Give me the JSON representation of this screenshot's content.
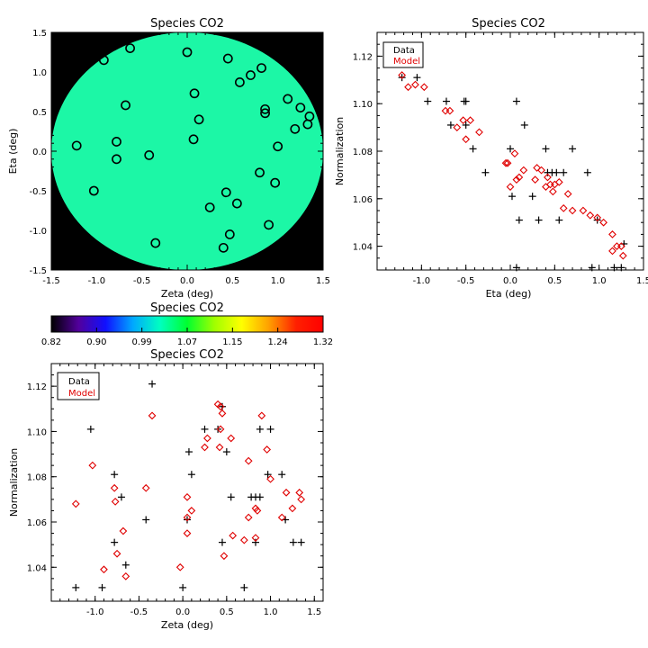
{
  "colors": {
    "data_marker": "#000000",
    "model_marker": "#e00000",
    "frame": "#000000",
    "map_background": "#000000"
  },
  "chart_data": [
    {
      "type": "scatter",
      "subtype": "map",
      "title": "Species CO2",
      "xlabel": "Zeta (deg)",
      "ylabel": "Eta (deg)",
      "xlim": [
        -1.5,
        1.5
      ],
      "ylim": [
        -1.5,
        1.5
      ],
      "xticks": [
        "-1.5",
        "-1.0",
        "-0.5",
        "0.0",
        "0.5",
        "1.0",
        "1.5"
      ],
      "yticks": [
        "-1.5",
        "-1.0",
        "-0.5",
        "0.0",
        "0.5",
        "1.0",
        "1.5"
      ],
      "field_color": "#1cf7a6",
      "field_disk_radius_deg": 1.5,
      "points": [
        {
          "x": -0.92,
          "y": 1.15
        },
        {
          "x": -0.63,
          "y": 1.3
        },
        {
          "x": 0.0,
          "y": 1.25
        },
        {
          "x": 0.45,
          "y": 1.17
        },
        {
          "x": 0.7,
          "y": 0.96
        },
        {
          "x": 0.82,
          "y": 1.05
        },
        {
          "x": 0.58,
          "y": 0.87
        },
        {
          "x": -0.68,
          "y": 0.58
        },
        {
          "x": 0.08,
          "y": 0.73
        },
        {
          "x": 0.13,
          "y": 0.4
        },
        {
          "x": 0.86,
          "y": 0.53
        },
        {
          "x": 0.86,
          "y": 0.48
        },
        {
          "x": 1.11,
          "y": 0.66
        },
        {
          "x": 1.25,
          "y": 0.55
        },
        {
          "x": 1.35,
          "y": 0.44
        },
        {
          "x": 1.33,
          "y": 0.34
        },
        {
          "x": 1.19,
          "y": 0.28
        },
        {
          "x": -0.78,
          "y": 0.12
        },
        {
          "x": 0.07,
          "y": 0.15
        },
        {
          "x": 1.0,
          "y": 0.06
        },
        {
          "x": -1.22,
          "y": 0.07
        },
        {
          "x": -0.78,
          "y": -0.1
        },
        {
          "x": -0.42,
          "y": -0.05
        },
        {
          "x": 0.8,
          "y": -0.27
        },
        {
          "x": 0.97,
          "y": -0.4
        },
        {
          "x": -1.03,
          "y": -0.5
        },
        {
          "x": 0.43,
          "y": -0.52
        },
        {
          "x": 0.25,
          "y": -0.71
        },
        {
          "x": 0.55,
          "y": -0.66
        },
        {
          "x": 0.9,
          "y": -0.93
        },
        {
          "x": 0.47,
          "y": -1.05
        },
        {
          "x": -0.35,
          "y": -1.16
        },
        {
          "x": 0.4,
          "y": -1.22
        }
      ]
    },
    {
      "type": "scatter",
      "title": "Species CO2",
      "xlabel": "Eta (deg)",
      "ylabel": "Normalization",
      "xlim": [
        -1.5,
        1.5
      ],
      "ylim": [
        1.03,
        1.13
      ],
      "xticks": [
        "-1.0",
        "-0.5",
        "0.0",
        "0.5",
        "1.0",
        "1.5"
      ],
      "yticks": [
        "1.04",
        "1.06",
        "1.08",
        "1.10",
        "1.12"
      ],
      "legend": {
        "position": "top-left",
        "entries": [
          "Data",
          "Model"
        ]
      },
      "series": [
        {
          "name": "Data",
          "marker": "plus",
          "points": [
            {
              "x": -1.22,
              "y": 1.111
            },
            {
              "x": -1.05,
              "y": 1.111
            },
            {
              "x": -0.93,
              "y": 1.101
            },
            {
              "x": -0.72,
              "y": 1.101
            },
            {
              "x": -0.52,
              "y": 1.101
            },
            {
              "x": -0.5,
              "y": 1.101
            },
            {
              "x": -0.67,
              "y": 1.091
            },
            {
              "x": -0.5,
              "y": 1.091
            },
            {
              "x": 0.07,
              "y": 1.101
            },
            {
              "x": 0.16,
              "y": 1.091
            },
            {
              "x": -0.42,
              "y": 1.081
            },
            {
              "x": 0.0,
              "y": 1.081
            },
            {
              "x": 0.4,
              "y": 1.081
            },
            {
              "x": 0.7,
              "y": 1.081
            },
            {
              "x": -0.28,
              "y": 1.071
            },
            {
              "x": 0.42,
              "y": 1.071
            },
            {
              "x": 0.47,
              "y": 1.071
            },
            {
              "x": 0.52,
              "y": 1.071
            },
            {
              "x": 0.6,
              "y": 1.071
            },
            {
              "x": 0.87,
              "y": 1.071
            },
            {
              "x": 0.25,
              "y": 1.061
            },
            {
              "x": 0.02,
              "y": 1.061
            },
            {
              "x": 0.1,
              "y": 1.051
            },
            {
              "x": 0.32,
              "y": 1.051
            },
            {
              "x": 0.55,
              "y": 1.051
            },
            {
              "x": 0.98,
              "y": 1.051
            },
            {
              "x": 1.28,
              "y": 1.041
            },
            {
              "x": 1.17,
              "y": 1.031
            },
            {
              "x": 1.25,
              "y": 1.031
            },
            {
              "x": 0.92,
              "y": 1.031
            },
            {
              "x": 0.07,
              "y": 1.031
            }
          ]
        },
        {
          "name": "Model",
          "marker": "diamond",
          "points": [
            {
              "x": -1.22,
              "y": 1.112
            },
            {
              "x": -1.15,
              "y": 1.107
            },
            {
              "x": -1.07,
              "y": 1.108
            },
            {
              "x": -0.97,
              "y": 1.107
            },
            {
              "x": -0.73,
              "y": 1.097
            },
            {
              "x": -0.68,
              "y": 1.097
            },
            {
              "x": -0.53,
              "y": 1.093
            },
            {
              "x": -0.45,
              "y": 1.093
            },
            {
              "x": -0.6,
              "y": 1.09
            },
            {
              "x": -0.5,
              "y": 1.085
            },
            {
              "x": -0.35,
              "y": 1.088
            },
            {
              "x": -0.05,
              "y": 1.075
            },
            {
              "x": -0.03,
              "y": 1.075
            },
            {
              "x": 0.05,
              "y": 1.079
            },
            {
              "x": 0.1,
              "y": 1.069
            },
            {
              "x": 0.07,
              "y": 1.068
            },
            {
              "x": 0.15,
              "y": 1.072
            },
            {
              "x": 0.0,
              "y": 1.065
            },
            {
              "x": 0.3,
              "y": 1.073
            },
            {
              "x": 0.35,
              "y": 1.072
            },
            {
              "x": 0.28,
              "y": 1.068
            },
            {
              "x": 0.42,
              "y": 1.069
            },
            {
              "x": 0.45,
              "y": 1.066
            },
            {
              "x": 0.5,
              "y": 1.066
            },
            {
              "x": 0.55,
              "y": 1.067
            },
            {
              "x": 0.4,
              "y": 1.065
            },
            {
              "x": 0.48,
              "y": 1.063
            },
            {
              "x": 0.65,
              "y": 1.062
            },
            {
              "x": 0.6,
              "y": 1.056
            },
            {
              "x": 0.7,
              "y": 1.055
            },
            {
              "x": 0.82,
              "y": 1.055
            },
            {
              "x": 0.9,
              "y": 1.053
            },
            {
              "x": 0.98,
              "y": 1.052
            },
            {
              "x": 1.05,
              "y": 1.05
            },
            {
              "x": 1.15,
              "y": 1.045
            },
            {
              "x": 1.2,
              "y": 1.04
            },
            {
              "x": 1.15,
              "y": 1.038
            },
            {
              "x": 1.25,
              "y": 1.04
            },
            {
              "x": 1.27,
              "y": 1.036
            }
          ]
        }
      ]
    },
    {
      "type": "heatmap",
      "subtype": "colorbar",
      "title": "Species CO2",
      "range": [
        0.82,
        1.32
      ],
      "tick_labels": [
        "0.82",
        "0.90",
        "0.99",
        "1.07",
        "1.15",
        "1.24",
        "1.32"
      ],
      "colormap": [
        "#000000",
        "#52009c",
        "#1010ff",
        "#00a8ff",
        "#00ffc0",
        "#00ff30",
        "#a0ff00",
        "#ffff00",
        "#ffa000",
        "#ff2000",
        "#ff0000"
      ]
    },
    {
      "type": "scatter",
      "title": "Species CO2",
      "xlabel": "Zeta (deg)",
      "ylabel": "Normalization",
      "xlim": [
        -1.5,
        1.6
      ],
      "ylim": [
        1.025,
        1.13
      ],
      "xticks": [
        "-1.0",
        "-0.5",
        "0.0",
        "0.5",
        "1.0",
        "1.5"
      ],
      "yticks": [
        "1.04",
        "1.06",
        "1.08",
        "1.10",
        "1.12"
      ],
      "legend": {
        "position": "top-left",
        "entries": [
          "Data",
          "Model"
        ]
      },
      "series": [
        {
          "name": "Data",
          "marker": "plus",
          "points": [
            {
              "x": -1.22,
              "y": 1.031
            },
            {
              "x": -1.05,
              "y": 1.101
            },
            {
              "x": -0.92,
              "y": 1.031
            },
            {
              "x": -0.78,
              "y": 1.081
            },
            {
              "x": -0.7,
              "y": 1.071
            },
            {
              "x": -0.78,
              "y": 1.051
            },
            {
              "x": -0.65,
              "y": 1.041
            },
            {
              "x": -0.42,
              "y": 1.061
            },
            {
              "x": -0.35,
              "y": 1.121
            },
            {
              "x": 0.0,
              "y": 1.031
            },
            {
              "x": 0.05,
              "y": 1.061
            },
            {
              "x": 0.07,
              "y": 1.091
            },
            {
              "x": 0.1,
              "y": 1.081
            },
            {
              "x": 0.25,
              "y": 1.101
            },
            {
              "x": 0.4,
              "y": 1.101
            },
            {
              "x": 0.45,
              "y": 1.111
            },
            {
              "x": 0.45,
              "y": 1.051
            },
            {
              "x": 0.5,
              "y": 1.091
            },
            {
              "x": 0.55,
              "y": 1.071
            },
            {
              "x": 0.7,
              "y": 1.031
            },
            {
              "x": 0.78,
              "y": 1.071
            },
            {
              "x": 0.83,
              "y": 1.071
            },
            {
              "x": 0.88,
              "y": 1.071
            },
            {
              "x": 0.83,
              "y": 1.051
            },
            {
              "x": 0.88,
              "y": 1.101
            },
            {
              "x": 0.97,
              "y": 1.081
            },
            {
              "x": 1.0,
              "y": 1.101
            },
            {
              "x": 1.13,
              "y": 1.081
            },
            {
              "x": 1.17,
              "y": 1.061
            },
            {
              "x": 1.26,
              "y": 1.051
            },
            {
              "x": 1.35,
              "y": 1.051
            }
          ]
        },
        {
          "name": "Model",
          "marker": "diamond",
          "points": [
            {
              "x": -1.22,
              "y": 1.068
            },
            {
              "x": -1.03,
              "y": 1.085
            },
            {
              "x": -0.9,
              "y": 1.039
            },
            {
              "x": -0.78,
              "y": 1.075
            },
            {
              "x": -0.77,
              "y": 1.069
            },
            {
              "x": -0.75,
              "y": 1.046
            },
            {
              "x": -0.68,
              "y": 1.056
            },
            {
              "x": -0.65,
              "y": 1.036
            },
            {
              "x": -0.42,
              "y": 1.075
            },
            {
              "x": -0.35,
              "y": 1.107
            },
            {
              "x": -0.03,
              "y": 1.04
            },
            {
              "x": 0.05,
              "y": 1.071
            },
            {
              "x": 0.05,
              "y": 1.062
            },
            {
              "x": 0.05,
              "y": 1.055
            },
            {
              "x": 0.1,
              "y": 1.065
            },
            {
              "x": 0.28,
              "y": 1.097
            },
            {
              "x": 0.25,
              "y": 1.093
            },
            {
              "x": 0.4,
              "y": 1.112
            },
            {
              "x": 0.43,
              "y": 1.111
            },
            {
              "x": 0.45,
              "y": 1.108
            },
            {
              "x": 0.43,
              "y": 1.101
            },
            {
              "x": 0.42,
              "y": 1.093
            },
            {
              "x": 0.55,
              "y": 1.097
            },
            {
              "x": 0.47,
              "y": 1.045
            },
            {
              "x": 0.57,
              "y": 1.054
            },
            {
              "x": 0.7,
              "y": 1.052
            },
            {
              "x": 0.75,
              "y": 1.087
            },
            {
              "x": 0.75,
              "y": 1.062
            },
            {
              "x": 0.83,
              "y": 1.066
            },
            {
              "x": 0.85,
              "y": 1.065
            },
            {
              "x": 0.83,
              "y": 1.053
            },
            {
              "x": 0.9,
              "y": 1.107
            },
            {
              "x": 0.96,
              "y": 1.092
            },
            {
              "x": 1.0,
              "y": 1.079
            },
            {
              "x": 1.13,
              "y": 1.062
            },
            {
              "x": 1.18,
              "y": 1.073
            },
            {
              "x": 1.25,
              "y": 1.066
            },
            {
              "x": 1.33,
              "y": 1.073
            },
            {
              "x": 1.35,
              "y": 1.07
            }
          ]
        }
      ]
    }
  ]
}
